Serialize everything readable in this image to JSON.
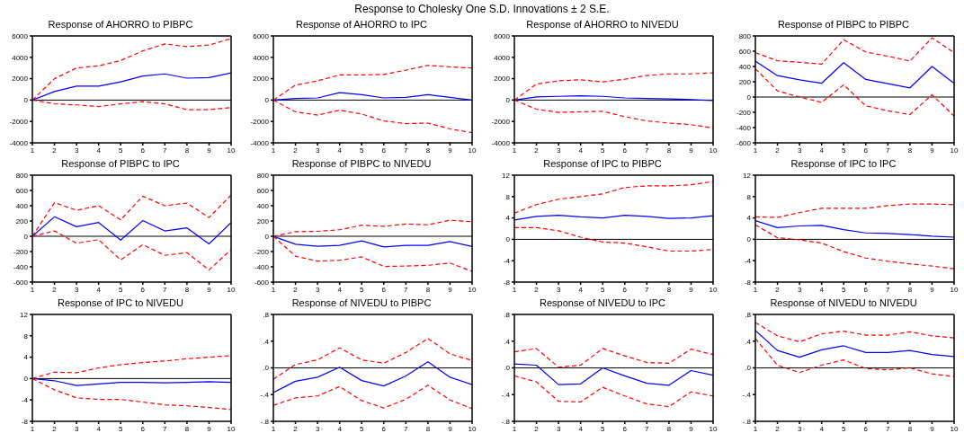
{
  "chart_data": [
    {
      "type": "other",
      "title": "Response to Cholesky One S.D. Innovations ± 2 S.E."
    },
    {
      "type": "line",
      "title": "Response of AHORRO to PIBPC",
      "x": [
        1,
        2,
        3,
        4,
        5,
        6,
        7,
        8,
        9,
        10
      ],
      "xlim": [
        1,
        10
      ],
      "xticks": [
        1,
        2,
        3,
        4,
        5,
        6,
        7,
        8,
        9,
        10
      ],
      "ylim": [
        -4000,
        6000
      ],
      "yticks": [
        -4000,
        -2000,
        0,
        2000,
        4000,
        6000
      ],
      "ref_lines": [
        {
          "axis": "y",
          "value": 0,
          "color": "#000000"
        }
      ],
      "series": [
        {
          "color": "#0000ff",
          "line_style": "solid",
          "values": [
            0,
            800,
            1300,
            1300,
            1700,
            2250,
            2450,
            2050,
            2100,
            2550
          ]
        },
        {
          "color": "#ff0000",
          "line_style": "dashed",
          "values": [
            0,
            2000,
            3000,
            3200,
            3700,
            4600,
            5250,
            5000,
            5150,
            5750
          ]
        },
        {
          "color": "#ff0000",
          "line_style": "dashed",
          "values": [
            0,
            -350,
            -450,
            -600,
            -350,
            -150,
            -350,
            -900,
            -900,
            -700
          ]
        }
      ]
    },
    {
      "type": "line",
      "title": "Response of AHORRO to IPC",
      "x": [
        1,
        2,
        3,
        4,
        5,
        6,
        7,
        8,
        9,
        10
      ],
      "xlim": [
        1,
        10
      ],
      "xticks": [
        1,
        2,
        3,
        4,
        5,
        6,
        7,
        8,
        9,
        10
      ],
      "ylim": [
        -4000,
        6000
      ],
      "yticks": [
        -4000,
        -2000,
        0,
        2000,
        4000,
        6000
      ],
      "ref_lines": [
        {
          "axis": "y",
          "value": 0,
          "color": "#000000"
        }
      ],
      "series": [
        {
          "color": "#0000ff",
          "line_style": "solid",
          "values": [
            0,
            150,
            200,
            700,
            500,
            200,
            250,
            500,
            250,
            0
          ]
        },
        {
          "color": "#ff0000",
          "line_style": "dashed",
          "values": [
            0,
            1400,
            1800,
            2350,
            2350,
            2400,
            2800,
            3250,
            3100,
            3000
          ]
        },
        {
          "color": "#ff0000",
          "line_style": "dashed",
          "values": [
            0,
            -1100,
            -1400,
            -950,
            -1300,
            -1950,
            -2200,
            -2150,
            -2700,
            -3050
          ]
        }
      ]
    },
    {
      "type": "line",
      "title": "Response of AHORRO to NIVEDU",
      "x": [
        1,
        2,
        3,
        4,
        5,
        6,
        7,
        8,
        9,
        10
      ],
      "xlim": [
        1,
        10
      ],
      "xticks": [
        1,
        2,
        3,
        4,
        5,
        6,
        7,
        8,
        9,
        10
      ],
      "ylim": [
        -4000,
        6000
      ],
      "yticks": [
        -4000,
        -2000,
        0,
        2000,
        4000,
        6000
      ],
      "ref_lines": [
        {
          "axis": "y",
          "value": 0,
          "color": "#000000"
        }
      ],
      "series": [
        {
          "color": "#0000ff",
          "line_style": "solid",
          "values": [
            0,
            300,
            350,
            400,
            350,
            200,
            150,
            100,
            50,
            -50
          ]
        },
        {
          "color": "#ff0000",
          "line_style": "dashed",
          "values": [
            0,
            1500,
            1800,
            1900,
            1700,
            1950,
            2300,
            2450,
            2450,
            2550
          ]
        },
        {
          "color": "#ff0000",
          "line_style": "dashed",
          "values": [
            0,
            -850,
            -1150,
            -1100,
            -1050,
            -1550,
            -1950,
            -2150,
            -2300,
            -2600
          ]
        }
      ]
    },
    {
      "type": "line",
      "title": "Response of PIBPC to PIBPC",
      "x": [
        1,
        2,
        3,
        4,
        5,
        6,
        7,
        8,
        9,
        10
      ],
      "xlim": [
        1,
        10
      ],
      "xticks": [
        1,
        2,
        3,
        4,
        5,
        6,
        7,
        8,
        9,
        10
      ],
      "ylim": [
        -600,
        800
      ],
      "yticks": [
        -600,
        -400,
        -200,
        0,
        200,
        400,
        600,
        800
      ],
      "ref_lines": [
        {
          "axis": "y",
          "value": 0,
          "color": "#000000"
        }
      ],
      "series": [
        {
          "color": "#0000ff",
          "line_style": "solid",
          "values": [
            470,
            280,
            225,
            180,
            450,
            230,
            175,
            120,
            400,
            180
          ]
        },
        {
          "color": "#ff0000",
          "line_style": "dashed",
          "values": [
            580,
            475,
            455,
            430,
            750,
            590,
            535,
            470,
            775,
            580
          ]
        },
        {
          "color": "#ff0000",
          "line_style": "dashed",
          "values": [
            370,
            80,
            0,
            -70,
            160,
            -115,
            -180,
            -230,
            30,
            -250
          ]
        }
      ]
    },
    {
      "type": "line",
      "title": "Response of PIBPC to IPC",
      "x": [
        1,
        2,
        3,
        4,
        5,
        6,
        7,
        8,
        9,
        10
      ],
      "xlim": [
        1,
        10
      ],
      "xticks": [
        1,
        2,
        3,
        4,
        5,
        6,
        7,
        8,
        9,
        10
      ],
      "ylim": [
        -600,
        800
      ],
      "yticks": [
        -600,
        -400,
        -200,
        0,
        200,
        400,
        600,
        800
      ],
      "ref_lines": [
        {
          "axis": "y",
          "value": 0,
          "color": "#000000"
        }
      ],
      "series": [
        {
          "color": "#0000ff",
          "line_style": "solid",
          "values": [
            0,
            255,
            125,
            180,
            -50,
            205,
            70,
            110,
            -100,
            180
          ]
        },
        {
          "color": "#ff0000",
          "line_style": "dashed",
          "values": [
            0,
            440,
            340,
            400,
            215,
            525,
            400,
            435,
            245,
            540
          ]
        },
        {
          "color": "#ff0000",
          "line_style": "dashed",
          "values": [
            0,
            70,
            -90,
            -45,
            -310,
            -110,
            -250,
            -215,
            -440,
            -175
          ]
        }
      ]
    },
    {
      "type": "line",
      "title": "Response of PIBPC to NIVEDU",
      "x": [
        1,
        2,
        3,
        4,
        5,
        6,
        7,
        8,
        9,
        10
      ],
      "xlim": [
        1,
        10
      ],
      "xticks": [
        1,
        2,
        3,
        4,
        5,
        6,
        7,
        8,
        9,
        10
      ],
      "ylim": [
        -600,
        800
      ],
      "yticks": [
        -600,
        -400,
        -200,
        0,
        200,
        400,
        600,
        800
      ],
      "ref_lines": [
        {
          "axis": "y",
          "value": 0,
          "color": "#000000"
        }
      ],
      "series": [
        {
          "color": "#0000ff",
          "line_style": "solid",
          "values": [
            0,
            -105,
            -130,
            -120,
            -60,
            -140,
            -120,
            -120,
            -70,
            -135
          ]
        },
        {
          "color": "#ff0000",
          "line_style": "dashed",
          "values": [
            0,
            60,
            65,
            85,
            145,
            130,
            160,
            150,
            210,
            190
          ]
        },
        {
          "color": "#ff0000",
          "line_style": "dashed",
          "values": [
            0,
            -260,
            -325,
            -315,
            -270,
            -395,
            -390,
            -380,
            -350,
            -460
          ]
        }
      ]
    },
    {
      "type": "line",
      "title": "Response of IPC to PIBPC",
      "x": [
        1,
        2,
        3,
        4,
        5,
        6,
        7,
        8,
        9,
        10
      ],
      "xlim": [
        1,
        10
      ],
      "xticks": [
        1,
        2,
        3,
        4,
        5,
        6,
        7,
        8,
        9,
        10
      ],
      "ylim": [
        -8,
        12
      ],
      "yticks": [
        -8,
        -4,
        0,
        4,
        8,
        12
      ],
      "ref_lines": [
        {
          "axis": "y",
          "value": 0,
          "color": "#000000"
        }
      ],
      "series": [
        {
          "color": "#0000ff",
          "line_style": "solid",
          "values": [
            3.6,
            4.3,
            4.5,
            4.2,
            4.0,
            4.5,
            4.3,
            3.9,
            4.0,
            4.4
          ]
        },
        {
          "color": "#ff0000",
          "line_style": "dashed",
          "values": [
            4.9,
            6.5,
            7.5,
            8.0,
            8.5,
            9.7,
            10.0,
            10.0,
            10.2,
            10.8
          ]
        },
        {
          "color": "#ff0000",
          "line_style": "dashed",
          "values": [
            2.2,
            2.2,
            1.6,
            0.4,
            -0.5,
            -0.7,
            -1.4,
            -2.2,
            -2.2,
            -1.9
          ]
        }
      ]
    },
    {
      "type": "line",
      "title": "Response of IPC to IPC",
      "x": [
        1,
        2,
        3,
        4,
        5,
        6,
        7,
        8,
        9,
        10
      ],
      "xlim": [
        1,
        10
      ],
      "xticks": [
        1,
        2,
        3,
        4,
        5,
        6,
        7,
        8,
        9,
        10
      ],
      "ylim": [
        -8,
        12
      ],
      "yticks": [
        -8,
        -4,
        0,
        4,
        8,
        12
      ],
      "ref_lines": [
        {
          "axis": "y",
          "value": 0,
          "color": "#000000"
        }
      ],
      "series": [
        {
          "color": "#0000ff",
          "line_style": "solid",
          "values": [
            3.5,
            2.2,
            2.5,
            2.6,
            1.8,
            1.2,
            1.1,
            0.9,
            0.6,
            0.4
          ]
        },
        {
          "color": "#ff0000",
          "line_style": "dashed",
          "values": [
            4.2,
            4.1,
            5.0,
            5.8,
            5.8,
            5.8,
            6.3,
            6.6,
            6.6,
            6.5
          ]
        },
        {
          "color": "#ff0000",
          "line_style": "dashed",
          "values": [
            2.7,
            0.3,
            -0.1,
            -0.7,
            -2.3,
            -3.5,
            -4.1,
            -4.6,
            -5.0,
            -5.5
          ]
        }
      ]
    },
    {
      "type": "line",
      "title": "Response of IPC to NIVEDU",
      "x": [
        1,
        2,
        3,
        4,
        5,
        6,
        7,
        8,
        9,
        10
      ],
      "xlim": [
        1,
        10
      ],
      "xticks": [
        1,
        2,
        3,
        4,
        5,
        6,
        7,
        8,
        9,
        10
      ],
      "ylim": [
        -8,
        12
      ],
      "yticks": [
        -8,
        -4,
        0,
        4,
        8,
        12
      ],
      "ref_lines": [
        {
          "axis": "y",
          "value": 0,
          "color": "#000000"
        }
      ],
      "series": [
        {
          "color": "#0000ff",
          "line_style": "solid",
          "values": [
            0,
            -0.4,
            -1.3,
            -1.0,
            -0.7,
            -0.7,
            -0.8,
            -0.7,
            -0.6,
            -0.7
          ]
        },
        {
          "color": "#ff0000",
          "line_style": "dashed",
          "values": [
            0,
            1.2,
            1.1,
            2.0,
            2.6,
            3.0,
            3.3,
            3.7,
            4.0,
            4.3
          ]
        },
        {
          "color": "#ff0000",
          "line_style": "dashed",
          "values": [
            0,
            -2.1,
            -3.6,
            -3.9,
            -3.9,
            -4.4,
            -4.9,
            -5.1,
            -5.4,
            -5.8
          ]
        }
      ]
    },
    {
      "type": "line",
      "title": "Response of NIVEDU to PIBPC",
      "x": [
        1,
        2,
        3,
        4,
        5,
        6,
        7,
        8,
        9,
        10
      ],
      "xlim": [
        1,
        10
      ],
      "xticks": [
        1,
        2,
        3,
        4,
        5,
        6,
        7,
        8,
        9,
        10
      ],
      "ylim": [
        -0.8,
        0.8
      ],
      "yticks": [
        {
          "value": -0.8,
          "label": "-.8"
        },
        {
          "value": -0.4,
          "label": "-.4"
        },
        {
          "value": 0,
          "label": ".0"
        },
        {
          "value": 0.4,
          "label": ".4"
        },
        {
          "value": 0.8,
          "label": ".8"
        }
      ],
      "ref_lines": [
        {
          "axis": "y",
          "value": 0,
          "color": "#000000"
        }
      ],
      "series": [
        {
          "color": "#0000ff",
          "line_style": "solid",
          "values": [
            -0.37,
            -0.2,
            -0.14,
            0.01,
            -0.19,
            -0.27,
            -0.12,
            0.09,
            -0.14,
            -0.25
          ]
        },
        {
          "color": "#ff0000",
          "line_style": "dashed",
          "values": [
            -0.17,
            0.05,
            0.12,
            0.3,
            0.12,
            0.07,
            0.23,
            0.44,
            0.21,
            0.11
          ]
        },
        {
          "color": "#ff0000",
          "line_style": "dashed",
          "values": [
            -0.56,
            -0.45,
            -0.42,
            -0.28,
            -0.49,
            -0.6,
            -0.47,
            -0.26,
            -0.48,
            -0.61
          ]
        }
      ]
    },
    {
      "type": "line",
      "title": "Response of NIVEDU to IPC",
      "x": [
        1,
        2,
        3,
        4,
        5,
        6,
        7,
        8,
        9,
        10
      ],
      "xlim": [
        1,
        10
      ],
      "xticks": [
        1,
        2,
        3,
        4,
        5,
        6,
        7,
        8,
        9,
        10
      ],
      "ylim": [
        -0.8,
        0.8
      ],
      "yticks": [
        {
          "value": -0.8,
          "label": "-.8"
        },
        {
          "value": -0.4,
          "label": "-.4"
        },
        {
          "value": 0,
          "label": ".0"
        },
        {
          "value": 0.4,
          "label": ".4"
        },
        {
          "value": 0.8,
          "label": ".8"
        }
      ],
      "ref_lines": [
        {
          "axis": "y",
          "value": 0,
          "color": "#000000"
        }
      ],
      "series": [
        {
          "color": "#0000ff",
          "line_style": "solid",
          "values": [
            0.06,
            0.04,
            -0.25,
            -0.24,
            0.0,
            -0.12,
            -0.23,
            -0.26,
            -0.04,
            -0.11
          ]
        },
        {
          "color": "#ff0000",
          "line_style": "dashed",
          "values": [
            0.24,
            0.29,
            0.01,
            0.04,
            0.29,
            0.18,
            0.08,
            0.07,
            0.28,
            0.2
          ]
        },
        {
          "color": "#ff0000",
          "line_style": "dashed",
          "values": [
            -0.12,
            -0.21,
            -0.5,
            -0.51,
            -0.29,
            -0.42,
            -0.54,
            -0.58,
            -0.36,
            -0.42
          ]
        }
      ]
    },
    {
      "type": "line",
      "title": "Response of NIVEDU to NIVEDU",
      "x": [
        1,
        2,
        3,
        4,
        5,
        6,
        7,
        8,
        9,
        10
      ],
      "xlim": [
        1,
        10
      ],
      "xticks": [
        1,
        2,
        3,
        4,
        5,
        6,
        7,
        8,
        9,
        10
      ],
      "ylim": [
        -0.8,
        0.8
      ],
      "yticks": [
        {
          "value": -0.8,
          "label": "-.8"
        },
        {
          "value": -0.4,
          "label": "-.4"
        },
        {
          "value": 0,
          "label": ".0"
        },
        {
          "value": 0.4,
          "label": ".4"
        },
        {
          "value": 0.8,
          "label": ".8"
        }
      ],
      "ref_lines": [
        {
          "axis": "y",
          "value": 0,
          "color": "#000000"
        }
      ],
      "series": [
        {
          "color": "#0000ff",
          "line_style": "solid",
          "values": [
            0.56,
            0.26,
            0.16,
            0.27,
            0.33,
            0.23,
            0.23,
            0.26,
            0.2,
            0.17
          ]
        },
        {
          "color": "#ff0000",
          "line_style": "dashed",
          "values": [
            0.68,
            0.48,
            0.39,
            0.51,
            0.55,
            0.49,
            0.49,
            0.54,
            0.48,
            0.45
          ]
        },
        {
          "color": "#ff0000",
          "line_style": "dashed",
          "values": [
            0.44,
            0.04,
            -0.07,
            0.04,
            0.12,
            -0.01,
            -0.03,
            0.0,
            -0.09,
            -0.13
          ]
        }
      ]
    }
  ]
}
